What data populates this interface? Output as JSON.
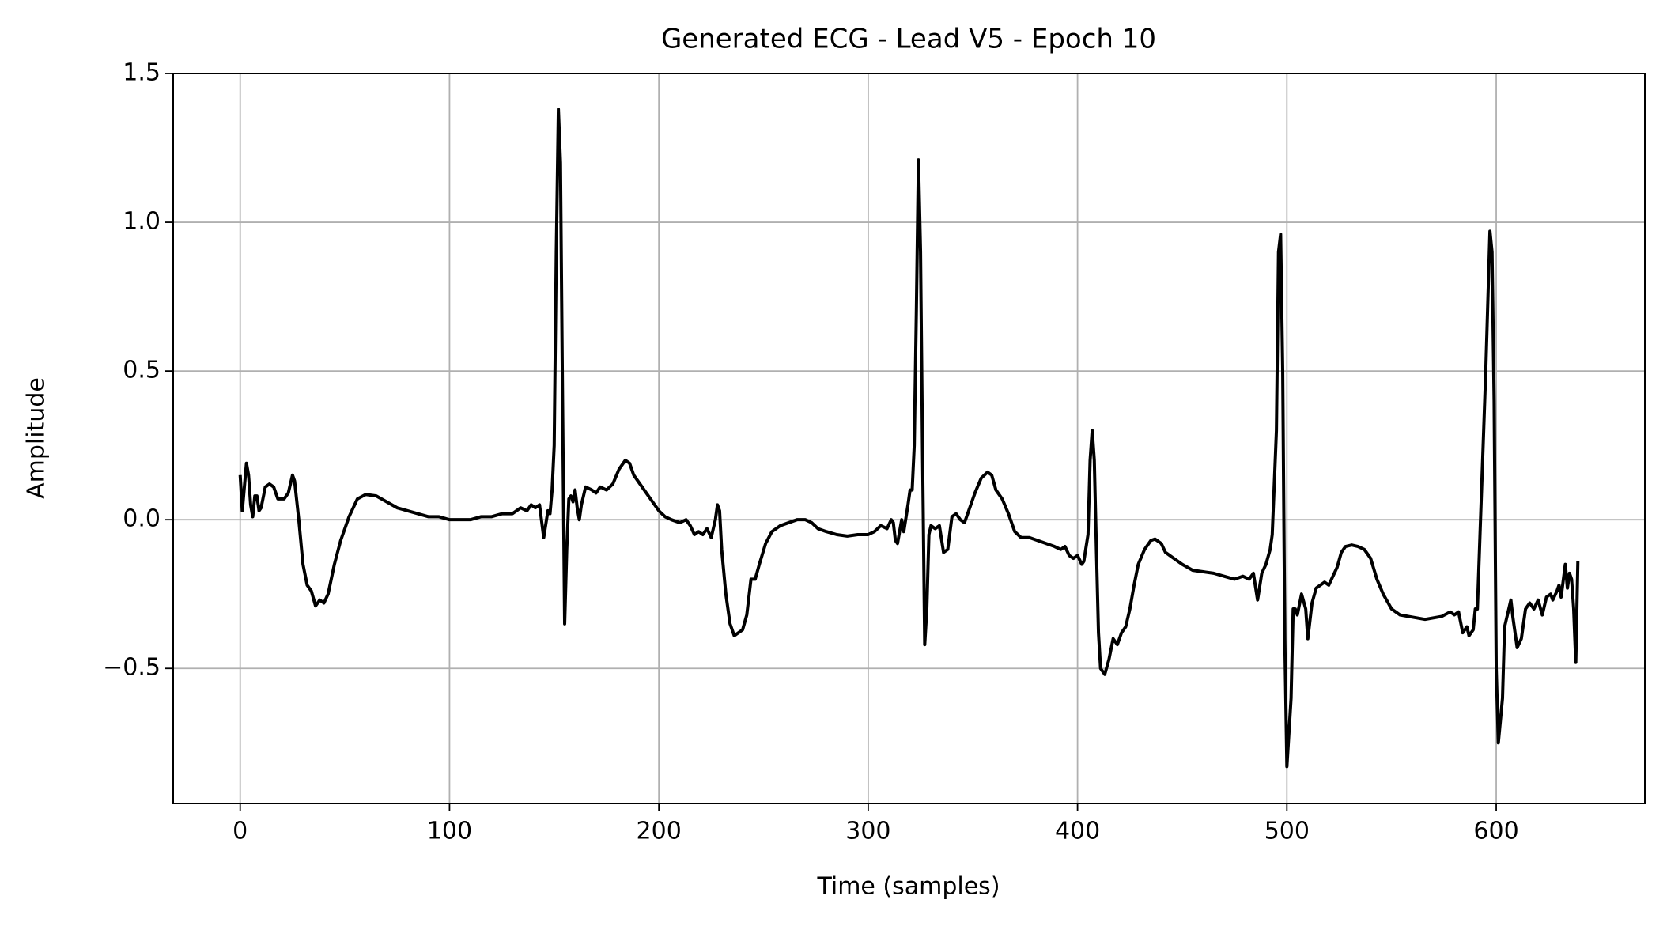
{
  "chart_data": {
    "type": "line",
    "title": "Generated ECG - Lead V5 - Epoch 10",
    "x_label": "Time (samples)",
    "y_label": "Amplitude",
    "xlim": [
      -32,
      671
    ],
    "ylim": [
      -0.954,
      1.5
    ],
    "xticks": [
      0,
      100,
      200,
      300,
      400,
      500,
      600
    ],
    "yticks": [
      {
        "value": -0.5,
        "label": "−0.5"
      },
      {
        "value": 0,
        "label": "0.0"
      },
      0.5,
      {
        "value": 1,
        "label": "1.0"
      },
      1.5
    ],
    "grid": true,
    "color": "#000000",
    "x": [
      0,
      1,
      3,
      4,
      5,
      6,
      7,
      8,
      9,
      10,
      12,
      14,
      16,
      18,
      21,
      23,
      25,
      26,
      28,
      30,
      32,
      34,
      36,
      38,
      40,
      42,
      45,
      48,
      52,
      56,
      60,
      65,
      70,
      75,
      80,
      85,
      90,
      95,
      100,
      105,
      110,
      115,
      120,
      125,
      130,
      134,
      137,
      139,
      141,
      143,
      145,
      147,
      148,
      149,
      150,
      151,
      152,
      153,
      154,
      155,
      156,
      157,
      158,
      159,
      160,
      161,
      162,
      163,
      165,
      168,
      170,
      172,
      175,
      178,
      181,
      184,
      186,
      188,
      191,
      194,
      197,
      200,
      203,
      206,
      210,
      213,
      215,
      217,
      219,
      221,
      223,
      225,
      227,
      228,
      229,
      230,
      232,
      234,
      236,
      238,
      240,
      242,
      244,
      246,
      248,
      251,
      254,
      258,
      262,
      266,
      270,
      273,
      276,
      280,
      285,
      290,
      295,
      300,
      303,
      306,
      309,
      311,
      312,
      313,
      314,
      316,
      317,
      319,
      320,
      321,
      322,
      323,
      324,
      325,
      326,
      327,
      328,
      329,
      330,
      332,
      334,
      336,
      338,
      340,
      342,
      344,
      346,
      348,
      351,
      354,
      357,
      359,
      361,
      364,
      367,
      370,
      373,
      377,
      381,
      385,
      389,
      392,
      394,
      396,
      398,
      400,
      402,
      403,
      405,
      406,
      407,
      408,
      409,
      410,
      411,
      413,
      415,
      417,
      419,
      421,
      423,
      425,
      427,
      429,
      432,
      435,
      437,
      440,
      442,
      446,
      450,
      455,
      460,
      465,
      470,
      475,
      479,
      482,
      484,
      486,
      488,
      490,
      492,
      493,
      495,
      496,
      497,
      498,
      499,
      500,
      502,
      503,
      504,
      505,
      507,
      509,
      510,
      512,
      514,
      516,
      518,
      520,
      522,
      524,
      526,
      528,
      531,
      534,
      537,
      540,
      543,
      546,
      550,
      554,
      558,
      562,
      566,
      570,
      574,
      578,
      580,
      582,
      584,
      586,
      587,
      589,
      590,
      591,
      592,
      595,
      597,
      598,
      599,
      600,
      601,
      603,
      604,
      606,
      607,
      608,
      610,
      612,
      614,
      616,
      618,
      620,
      622,
      624,
      626,
      627,
      629,
      630,
      631,
      633,
      634,
      635,
      636,
      637,
      638,
      639
    ],
    "values": [
      0.15,
      0.03,
      0.19,
      0.15,
      0.05,
      0.01,
      0.08,
      0.08,
      0.03,
      0.04,
      0.11,
      0.12,
      0.11,
      0.07,
      0.07,
      0.09,
      0.15,
      0.13,
      0.0,
      -0.15,
      -0.22,
      -0.24,
      -0.29,
      -0.27,
      -0.28,
      -0.25,
      -0.15,
      -0.07,
      0.01,
      0.07,
      0.085,
      0.08,
      0.06,
      0.04,
      0.03,
      0.02,
      0.01,
      0.01,
      0.0,
      0.0,
      0.0,
      0.01,
      0.01,
      0.02,
      0.02,
      0.04,
      0.03,
      0.05,
      0.04,
      0.05,
      -0.06,
      0.03,
      0.02,
      0.1,
      0.25,
      0.9,
      1.38,
      1.2,
      0.4,
      -0.35,
      -0.1,
      0.07,
      0.08,
      0.06,
      0.1,
      0.04,
      0.0,
      0.05,
      0.11,
      0.1,
      0.09,
      0.11,
      0.1,
      0.12,
      0.17,
      0.2,
      0.19,
      0.15,
      0.12,
      0.09,
      0.06,
      0.03,
      0.01,
      0.0,
      -0.01,
      0.0,
      -0.02,
      -0.05,
      -0.04,
      -0.05,
      -0.03,
      -0.06,
      0.0,
      0.05,
      0.03,
      -0.1,
      -0.25,
      -0.35,
      -0.39,
      -0.38,
      -0.37,
      -0.32,
      -0.2,
      -0.2,
      -0.15,
      -0.08,
      -0.04,
      -0.02,
      -0.01,
      0.0,
      0.0,
      -0.01,
      -0.03,
      -0.04,
      -0.05,
      -0.055,
      -0.05,
      -0.05,
      -0.04,
      -0.02,
      -0.03,
      0.0,
      -0.01,
      -0.07,
      -0.08,
      0.0,
      -0.04,
      0.05,
      0.1,
      0.1,
      0.25,
      0.7,
      1.21,
      0.9,
      0.2,
      -0.42,
      -0.3,
      -0.05,
      -0.02,
      -0.03,
      -0.02,
      -0.11,
      -0.1,
      0.01,
      0.02,
      0.0,
      -0.01,
      0.03,
      0.09,
      0.14,
      0.16,
      0.15,
      0.1,
      0.07,
      0.02,
      -0.04,
      -0.06,
      -0.06,
      -0.07,
      -0.08,
      -0.09,
      -0.1,
      -0.09,
      -0.12,
      -0.13,
      -0.12,
      -0.15,
      -0.14,
      -0.05,
      0.2,
      0.3,
      0.2,
      -0.1,
      -0.38,
      -0.5,
      -0.52,
      -0.47,
      -0.4,
      -0.42,
      -0.38,
      -0.36,
      -0.3,
      -0.22,
      -0.15,
      -0.1,
      -0.07,
      -0.065,
      -0.08,
      -0.11,
      -0.13,
      -0.15,
      -0.17,
      -0.175,
      -0.18,
      -0.19,
      -0.2,
      -0.19,
      -0.2,
      -0.18,
      -0.27,
      -0.18,
      -0.15,
      -0.1,
      -0.05,
      0.3,
      0.9,
      0.96,
      0.5,
      -0.4,
      -0.83,
      -0.6,
      -0.3,
      -0.3,
      -0.32,
      -0.25,
      -0.3,
      -0.4,
      -0.28,
      -0.23,
      -0.22,
      -0.21,
      -0.22,
      -0.19,
      -0.16,
      -0.11,
      -0.09,
      -0.085,
      -0.09,
      -0.1,
      -0.13,
      -0.2,
      -0.25,
      -0.3,
      -0.32,
      -0.325,
      -0.33,
      -0.335,
      -0.33,
      -0.325,
      -0.31,
      -0.32,
      -0.31,
      -0.38,
      -0.36,
      -0.39,
      -0.37,
      -0.3,
      -0.3,
      -0.1,
      0.5,
      0.97,
      0.9,
      0.4,
      -0.5,
      -0.75,
      -0.6,
      -0.36,
      -0.3,
      -0.27,
      -0.33,
      -0.43,
      -0.4,
      -0.3,
      -0.28,
      -0.3,
      -0.27,
      -0.32,
      -0.26,
      -0.25,
      -0.27,
      -0.24,
      -0.22,
      -0.26,
      -0.15,
      -0.23,
      -0.18,
      -0.2,
      -0.3,
      -0.48,
      -0.14
    ]
  }
}
